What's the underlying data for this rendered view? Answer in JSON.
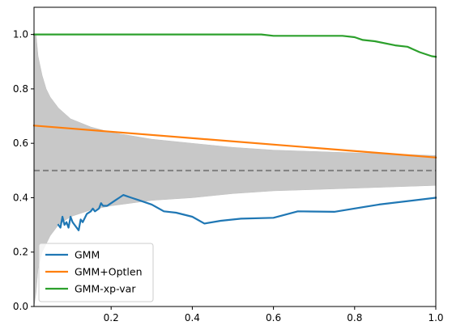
{
  "chart_data": {
    "type": "line",
    "title": "",
    "xlabel": "",
    "ylabel": "",
    "xlim": [
      0.01,
      1.0
    ],
    "ylim": [
      0.0,
      1.1
    ],
    "grid": false,
    "legend_position": "lower-left",
    "x_ticks": [
      {
        "value": 0.2,
        "label": "0.2"
      },
      {
        "value": 0.4,
        "label": "0.4"
      },
      {
        "value": 0.6,
        "label": "0.6"
      },
      {
        "value": 0.8,
        "label": "0.8"
      },
      {
        "value": 1.0,
        "label": "1.0"
      }
    ],
    "y_ticks": [
      {
        "value": 0.0,
        "label": "0.0"
      },
      {
        "value": 0.2,
        "label": "0.2"
      },
      {
        "value": 0.4,
        "label": "0.4"
      },
      {
        "value": 0.6,
        "label": "0.6"
      },
      {
        "value": 0.8,
        "label": "0.8"
      },
      {
        "value": 1.0,
        "label": "1.0"
      }
    ],
    "reference_line": {
      "y": 0.5,
      "color": "#808080",
      "style": "dashed"
    },
    "band": {
      "color": "#c8c8c8",
      "x": [
        0.01,
        0.015,
        0.02,
        0.03,
        0.04,
        0.05,
        0.07,
        0.1,
        0.15,
        0.2,
        0.3,
        0.4,
        0.5,
        0.6,
        0.7,
        0.8,
        0.9,
        1.0
      ],
      "upper": [
        1.0,
        1.0,
        0.92,
        0.85,
        0.8,
        0.77,
        0.73,
        0.69,
        0.66,
        0.64,
        0.615,
        0.6,
        0.585,
        0.575,
        0.57,
        0.565,
        0.56,
        0.555
      ],
      "lower": [
        0.0,
        0.05,
        0.14,
        0.2,
        0.23,
        0.26,
        0.3,
        0.33,
        0.355,
        0.37,
        0.39,
        0.4,
        0.415,
        0.425,
        0.43,
        0.435,
        0.44,
        0.445
      ]
    },
    "series": [
      {
        "name": "GMM",
        "color": "#1f77b4",
        "x": [
          0.07,
          0.075,
          0.08,
          0.085,
          0.09,
          0.095,
          0.1,
          0.105,
          0.11,
          0.12,
          0.125,
          0.13,
          0.14,
          0.15,
          0.155,
          0.16,
          0.17,
          0.175,
          0.18,
          0.19,
          0.2,
          0.21,
          0.22,
          0.23,
          0.24,
          0.25,
          0.27,
          0.3,
          0.33,
          0.36,
          0.4,
          0.43,
          0.47,
          0.52,
          0.6,
          0.66,
          0.75,
          0.86,
          1.0
        ],
        "y": [
          0.3,
          0.29,
          0.33,
          0.3,
          0.31,
          0.29,
          0.33,
          0.31,
          0.3,
          0.28,
          0.32,
          0.31,
          0.34,
          0.35,
          0.36,
          0.35,
          0.36,
          0.38,
          0.37,
          0.37,
          0.38,
          0.39,
          0.4,
          0.41,
          0.405,
          0.4,
          0.39,
          0.375,
          0.35,
          0.345,
          0.33,
          0.305,
          0.315,
          0.323,
          0.326,
          0.35,
          0.348,
          0.375,
          0.4
        ]
      },
      {
        "name": "GMM+Optlen",
        "color": "#ff7f0e",
        "x": [
          0.01,
          1.0
        ],
        "y": [
          0.665,
          0.548
        ]
      },
      {
        "name": "GMM-xp-var",
        "color": "#2ca02c",
        "x": [
          0.01,
          0.57,
          0.6,
          0.77,
          0.8,
          0.82,
          0.85,
          0.9,
          0.93,
          0.96,
          0.99,
          1.0
        ],
        "y": [
          1.0,
          1.0,
          0.995,
          0.995,
          0.99,
          0.98,
          0.975,
          0.96,
          0.955,
          0.935,
          0.92,
          0.918
        ]
      }
    ]
  }
}
